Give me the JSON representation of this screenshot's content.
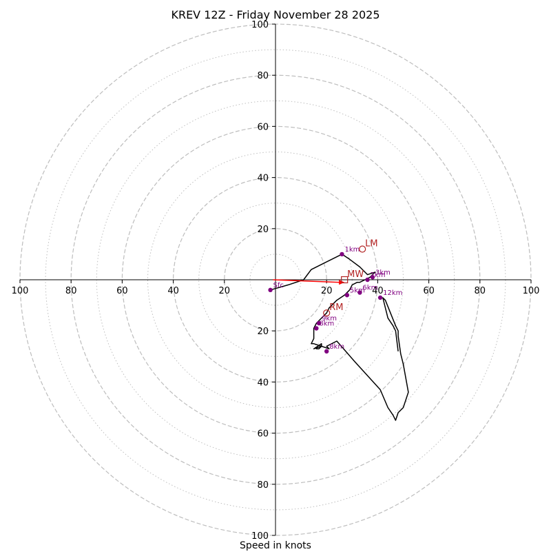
{
  "chart_data": {
    "type": "hodograph",
    "title": "KREV 12Z - Friday November 28 2025",
    "xlabel": "Speed in knots",
    "units": "knots",
    "range": [
      -100,
      100
    ],
    "ring_major": [
      20,
      40,
      60,
      80,
      100
    ],
    "ring_minor": [
      10,
      30,
      50,
      70,
      90
    ],
    "x_tick_labels": [
      "100",
      "80",
      "60",
      "40",
      "20",
      "20",
      "40",
      "60",
      "80",
      "100"
    ],
    "x_tick_values": [
      -100,
      -80,
      -60,
      -40,
      -20,
      20,
      40,
      60,
      80,
      100
    ],
    "y_tick_labels": [
      "100",
      "80",
      "60",
      "40",
      "20",
      "20",
      "40",
      "60",
      "80",
      "100"
    ],
    "y_tick_values": [
      100,
      80,
      60,
      40,
      20,
      -20,
      -40,
      -60,
      -80,
      -100
    ],
    "profile": {
      "name": "wind profile",
      "color": "#000000",
      "points": [
        [
          -2,
          -4
        ],
        [
          5,
          -2
        ],
        [
          11,
          0
        ],
        [
          14,
          4
        ],
        [
          16,
          5
        ],
        [
          26,
          10
        ],
        [
          29,
          8
        ],
        [
          33,
          5
        ],
        [
          36,
          2
        ],
        [
          39,
          3
        ],
        [
          37,
          1
        ],
        [
          35,
          0
        ],
        [
          33,
          -1
        ],
        [
          32,
          -1
        ],
        [
          30,
          -2
        ],
        [
          29,
          -4
        ],
        [
          27,
          -6
        ],
        [
          24,
          -8
        ],
        [
          21,
          -11
        ],
        [
          20,
          -13
        ],
        [
          18,
          -15
        ],
        [
          16,
          -17
        ],
        [
          15,
          -19
        ],
        [
          15,
          -21
        ],
        [
          15,
          -23
        ],
        [
          14,
          -25
        ],
        [
          15,
          -25
        ],
        [
          18,
          -26
        ],
        [
          17,
          -27
        ],
        [
          16,
          -27
        ],
        [
          17,
          -27
        ],
        [
          18,
          -26
        ],
        [
          18,
          -25
        ],
        [
          15,
          -27
        ],
        [
          18,
          -26
        ],
        [
          21,
          -27
        ],
        [
          20,
          -26
        ],
        [
          22,
          -25
        ],
        [
          24,
          -24
        ],
        [
          31,
          -32
        ],
        [
          41,
          -43
        ],
        [
          44,
          -50
        ],
        [
          46,
          -53
        ],
        [
          47,
          -55
        ],
        [
          48,
          -52
        ],
        [
          50,
          -50
        ],
        [
          51,
          -47
        ],
        [
          52,
          -44
        ],
        [
          50,
          -33
        ],
        [
          49,
          -29
        ],
        [
          48,
          -22
        ],
        [
          48,
          -20
        ],
        [
          47,
          -18
        ],
        [
          43,
          -8
        ],
        [
          42,
          -7
        ],
        [
          44,
          -15
        ],
        [
          46,
          -18
        ],
        [
          47,
          -20
        ],
        [
          48,
          -28
        ]
      ]
    },
    "height_markers": [
      {
        "label": "Sfc",
        "u": -2,
        "v": -4
      },
      {
        "label": "1km",
        "u": 26,
        "v": 10
      },
      {
        "label": "2km",
        "u": 36,
        "v": 0
      },
      {
        "label": "3km",
        "u": 38,
        "v": 1
      },
      {
        "label": "5km",
        "u": 28,
        "v": -6
      },
      {
        "label": "6km",
        "u": 33,
        "v": -5
      },
      {
        "label": "9km",
        "u": 17,
        "v": -17
      },
      {
        "label": "8km",
        "u": 16,
        "v": -19
      },
      {
        "label": "8km",
        "u": 20,
        "v": -28
      },
      {
        "label": "12km",
        "u": 41,
        "v": -7
      }
    ],
    "storm_motions": [
      {
        "label": "LM",
        "u": 34,
        "v": 12,
        "marker": "circle"
      },
      {
        "label": "RM",
        "u": 20,
        "v": -13,
        "marker": "circle"
      },
      {
        "label": "MW",
        "u": 27,
        "v": 0,
        "marker": "square"
      }
    ],
    "shear_arrow": {
      "from": [
        -1,
        0
      ],
      "to": [
        27,
        -1
      ],
      "color": "#ff0000"
    },
    "colors": {
      "profile": "#000000",
      "height_marker": "#800080",
      "storm_motion": "#b22222",
      "arrow": "#ff0000",
      "rings": "#bdbdbd"
    }
  }
}
